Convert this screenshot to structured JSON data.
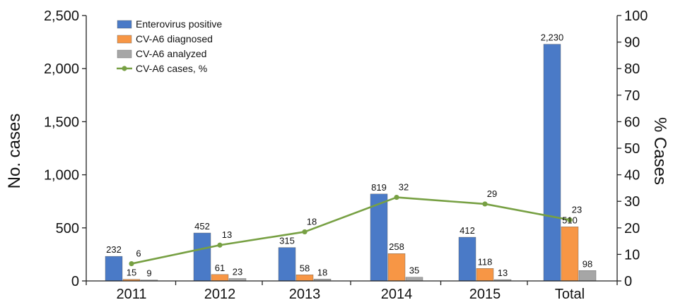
{
  "chart_data": {
    "type": "bar",
    "title": "",
    "xlabel": "",
    "ylabel": "No. cases",
    "y2label": "% Cases",
    "categories": [
      "2011",
      "2012",
      "2013",
      "2014",
      "2015",
      "Total"
    ],
    "ylim": [
      0,
      2500
    ],
    "y2lim": [
      0,
      100
    ],
    "yticks": [
      "0",
      "500",
      "1,000",
      "1,500",
      "2,000",
      "2,500"
    ],
    "y2ticks": [
      "0",
      "10",
      "20",
      "30",
      "40",
      "50",
      "60",
      "70",
      "80",
      "90",
      "100"
    ],
    "grid": false,
    "legend_position": "top-left",
    "series": [
      {
        "name": "Enterovirus positive",
        "kind": "bar",
        "axis": "left",
        "color": "#4a7ac7",
        "values": [
          232,
          452,
          315,
          819,
          412,
          2230
        ],
        "labels": [
          "232",
          "452",
          "315",
          "819",
          "412",
          "2,230"
        ]
      },
      {
        "name": "CV-A6 diagnosed",
        "kind": "bar",
        "axis": "left",
        "color": "#f79645",
        "values": [
          15,
          61,
          58,
          258,
          118,
          510
        ],
        "labels": [
          "15",
          "61",
          "58",
          "258",
          "118",
          "510"
        ]
      },
      {
        "name": "CV-A6 analyzed",
        "kind": "bar",
        "axis": "left",
        "color": "#a6a6a6",
        "values": [
          9,
          23,
          18,
          35,
          13,
          98
        ],
        "labels": [
          "9",
          "23",
          "18",
          "35",
          "13",
          "98"
        ]
      },
      {
        "name": "CV-A6 cases, %",
        "kind": "line",
        "axis": "right",
        "color": "#77a043",
        "values": [
          6.5,
          13.5,
          18.5,
          31.5,
          29,
          23
        ],
        "labels": [
          "6",
          "13",
          "18",
          "32",
          "29",
          "23"
        ]
      }
    ]
  }
}
